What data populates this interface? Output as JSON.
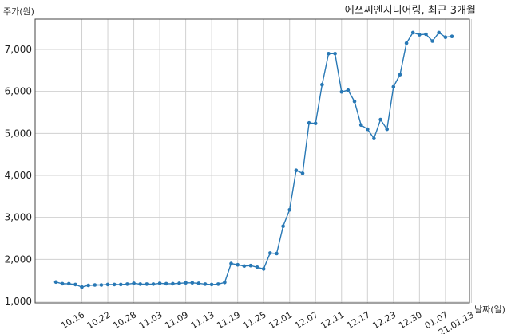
{
  "chart_data": {
    "type": "line",
    "title": "에쓰씨엔지니어링, 최근 3개월",
    "ylabel": "주가(원)",
    "xlabel": "날짜(일)",
    "ylim": [
      1000,
      7500
    ],
    "yticks": [
      1000,
      2000,
      3000,
      4000,
      5000,
      6000,
      7000
    ],
    "ytick_labels": [
      "1,000",
      "2,000",
      "3,000",
      "4,000",
      "5,000",
      "6,000",
      "7,000"
    ],
    "xtick_labels": [
      "10.16",
      "10.22",
      "10.28",
      "11.03",
      "11.09",
      "11.13",
      "11.19",
      "11.25",
      "12.01",
      "12.07",
      "12.11",
      "12.17",
      "12.23",
      "12.30",
      "01.07",
      "21.01.13"
    ],
    "xtick_index": [
      4,
      8,
      12,
      16,
      20,
      24,
      28,
      32,
      36,
      40,
      44,
      48,
      52,
      56,
      60,
      64
    ],
    "grid": true,
    "color": "#2878b5",
    "series": [
      {
        "values": [
          1460,
          1420,
          1420,
          1400,
          1340,
          1380,
          1390,
          1390,
          1400,
          1400,
          1400,
          1410,
          1430,
          1410,
          1410,
          1410,
          1430,
          1420,
          1420,
          1430,
          1440,
          1440,
          1430,
          1410,
          1400,
          1410,
          1450,
          1900,
          1870,
          1840,
          1850,
          1810,
          1770,
          2150,
          2140,
          2790,
          3180,
          4120,
          4050,
          5250,
          5240,
          6160,
          6900,
          6900,
          5990,
          6030,
          5760,
          5200,
          5100,
          4880,
          5330,
          5100,
          6110,
          6400,
          7150,
          7400,
          7350,
          7360,
          7200,
          7400,
          7290,
          7310
        ]
      }
    ]
  }
}
